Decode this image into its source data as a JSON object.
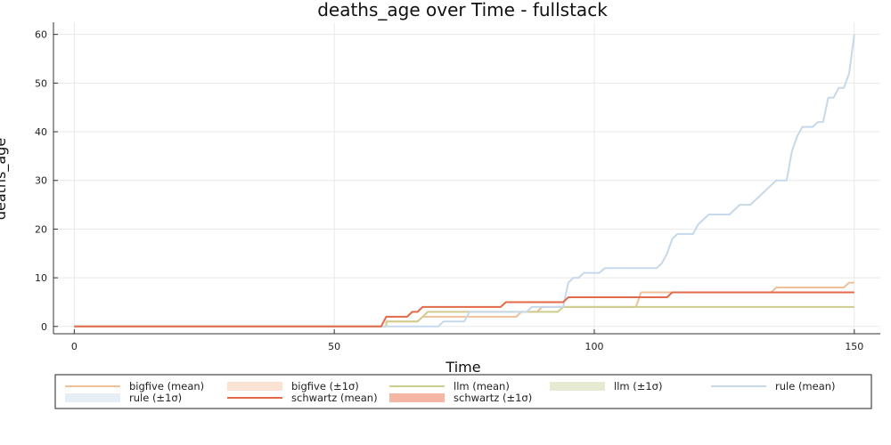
{
  "chart_data": {
    "type": "line",
    "title": "deaths_age over Time - fullstack",
    "xlabel": "Time",
    "ylabel": "deaths_age",
    "xlim": [
      -4,
      155
    ],
    "ylim": [
      -1.5,
      62.5
    ],
    "xticks": [
      0,
      50,
      100,
      150
    ],
    "yticks": [
      0,
      10,
      20,
      30,
      40,
      50,
      60
    ],
    "grid": true,
    "legend_position": "bottom",
    "legend_entries": [
      "bigfive (mean)",
      "bigfive (±1σ)",
      "llm (mean)",
      "llm (±1σ)",
      "rule (mean)",
      "rule (±1σ)",
      "schwartz (mean)",
      "schwartz (±1σ)"
    ],
    "series": [
      {
        "name": "bigfive (mean)",
        "color": "#eec19a",
        "band_name": "bigfive (±1σ)",
        "band_color": "#fbe3d4",
        "points": [
          [
            0,
            0
          ],
          [
            60,
            0
          ],
          [
            60,
            1
          ],
          [
            66,
            1
          ],
          [
            67,
            2
          ],
          [
            85,
            2
          ],
          [
            86,
            3
          ],
          [
            89,
            3
          ],
          [
            90,
            4
          ],
          [
            108,
            4
          ],
          [
            109,
            7
          ],
          [
            134,
            7
          ],
          [
            135,
            8
          ],
          [
            148,
            8
          ],
          [
            149,
            9
          ],
          [
            150,
            9
          ]
        ]
      },
      {
        "name": "llm (mean)",
        "color": "#cfcd8e",
        "band_name": "llm (±1σ)",
        "band_color": "#e7ead2",
        "points": [
          [
            0,
            0
          ],
          [
            60,
            0
          ],
          [
            60,
            1
          ],
          [
            66,
            1
          ],
          [
            68,
            3
          ],
          [
            93,
            3
          ],
          [
            94,
            4
          ],
          [
            150,
            4
          ]
        ]
      },
      {
        "name": "rule (mean)",
        "color": "#c5d9ea",
        "band_name": "rule (±1σ)",
        "band_color": "#e6eef5",
        "points": [
          [
            0,
            0
          ],
          [
            70,
            0
          ],
          [
            71,
            1
          ],
          [
            75,
            1
          ],
          [
            76,
            3
          ],
          [
            87,
            3
          ],
          [
            88,
            4
          ],
          [
            94,
            4
          ],
          [
            95,
            9
          ],
          [
            96,
            10
          ],
          [
            97,
            10
          ],
          [
            98,
            11
          ],
          [
            101,
            11
          ],
          [
            102,
            12
          ],
          [
            112,
            12
          ],
          [
            113,
            13
          ],
          [
            114,
            15
          ],
          [
            115,
            18
          ],
          [
            116,
            19
          ],
          [
            119,
            19
          ],
          [
            120,
            21
          ],
          [
            121,
            22
          ],
          [
            122,
            23
          ],
          [
            126,
            23
          ],
          [
            127,
            24
          ],
          [
            128,
            25
          ],
          [
            130,
            25
          ],
          [
            131,
            26
          ],
          [
            132,
            27
          ],
          [
            133,
            28
          ],
          [
            134,
            29
          ],
          [
            135,
            30
          ],
          [
            137,
            30
          ],
          [
            138,
            36
          ],
          [
            139,
            39
          ],
          [
            140,
            41
          ],
          [
            142,
            41
          ],
          [
            143,
            42
          ],
          [
            144,
            42
          ],
          [
            145,
            47
          ],
          [
            146,
            47
          ],
          [
            147,
            49
          ],
          [
            148,
            49
          ],
          [
            149,
            52
          ],
          [
            150,
            60
          ]
        ]
      },
      {
        "name": "schwartz (mean)",
        "color": "#e36a48",
        "band_name": "schwartz (±1σ)",
        "band_color": "#f5b6a5",
        "points": [
          [
            0,
            0
          ],
          [
            59,
            0
          ],
          [
            60,
            2
          ],
          [
            64,
            2
          ],
          [
            65,
            3
          ],
          [
            66,
            3
          ],
          [
            67,
            4
          ],
          [
            82,
            4
          ],
          [
            83,
            5
          ],
          [
            94,
            5
          ],
          [
            95,
            6
          ],
          [
            114,
            6
          ],
          [
            115,
            7
          ],
          [
            150,
            7
          ]
        ]
      }
    ]
  }
}
